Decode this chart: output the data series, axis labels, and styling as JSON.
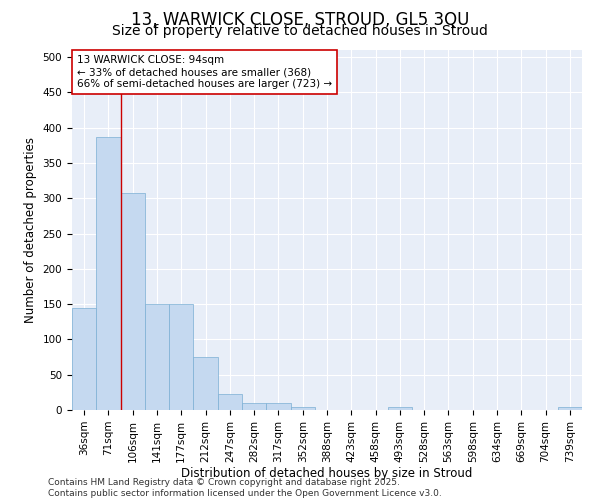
{
  "title_line1": "13, WARWICK CLOSE, STROUD, GL5 3QU",
  "title_line2": "Size of property relative to detached houses in Stroud",
  "xlabel": "Distribution of detached houses by size in Stroud",
  "ylabel": "Number of detached properties",
  "bar_labels": [
    "36sqm",
    "71sqm",
    "106sqm",
    "141sqm",
    "177sqm",
    "212sqm",
    "247sqm",
    "282sqm",
    "317sqm",
    "352sqm",
    "388sqm",
    "423sqm",
    "458sqm",
    "493sqm",
    "528sqm",
    "563sqm",
    "598sqm",
    "634sqm",
    "669sqm",
    "704sqm",
    "739sqm"
  ],
  "bar_values": [
    145,
    387,
    308,
    150,
    150,
    75,
    22,
    10,
    10,
    4,
    0,
    0,
    0,
    4,
    0,
    0,
    0,
    0,
    0,
    0,
    4
  ],
  "bar_color": "#c5d9f0",
  "bar_edgecolor": "#7bafd4",
  "vline_color": "#cc0000",
  "annotation_text": "13 WARWICK CLOSE: 94sqm\n← 33% of detached houses are smaller (368)\n66% of semi-detached houses are larger (723) →",
  "annotation_box_edgecolor": "#cc0000",
  "annotation_box_facecolor": "#ffffff",
  "ylim": [
    0,
    510
  ],
  "yticks": [
    0,
    50,
    100,
    150,
    200,
    250,
    300,
    350,
    400,
    450,
    500
  ],
  "bg_color": "#e8eef8",
  "grid_color": "#ffffff",
  "footer_line1": "Contains HM Land Registry data © Crown copyright and database right 2025.",
  "footer_line2": "Contains public sector information licensed under the Open Government Licence v3.0.",
  "title_fontsize": 12,
  "subtitle_fontsize": 10,
  "axis_label_fontsize": 8.5,
  "tick_fontsize": 7.5,
  "annotation_fontsize": 7.5,
  "footer_fontsize": 6.5
}
